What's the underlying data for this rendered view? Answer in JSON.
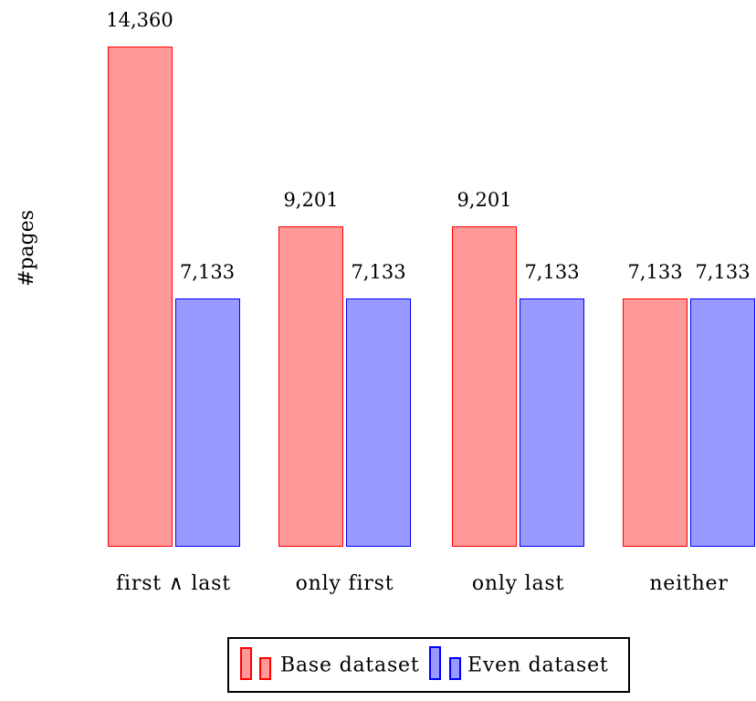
{
  "chart_data": {
    "type": "bar",
    "title": "",
    "xlabel": "",
    "ylabel": "#pages",
    "categories": [
      "first ∧ last",
      "only first",
      "only last",
      "neither"
    ],
    "series": [
      {
        "name": "Base dataset",
        "values": [
          14360,
          9201,
          9201,
          7133
        ],
        "value_labels": [
          "14,360",
          "9,201",
          "9,201",
          "7,133"
        ],
        "fill": "#ff9999",
        "stroke": "#ff0000"
      },
      {
        "name": "Even dataset",
        "values": [
          7133,
          7133,
          7133,
          7133
        ],
        "value_labels": [
          "7,133",
          "7,133",
          "7,133",
          "7,133"
        ],
        "fill": "#9999ff",
        "stroke": "#0000ff"
      }
    ],
    "ylim": [
      0,
      14360
    ],
    "grid": false,
    "axes_hidden": true,
    "bar_value_labels_shown": true,
    "legend_position": "bottom",
    "text_color": "#000000",
    "background_color": "#ffffff"
  }
}
